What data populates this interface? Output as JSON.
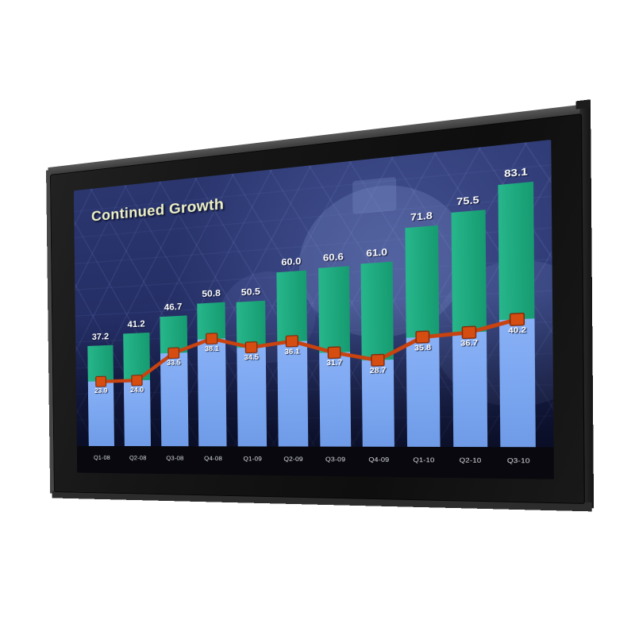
{
  "scene": {
    "background_color": "#ffffff",
    "monitor": {
      "bezel_color": "#141414",
      "top_edge_color": "#4d4d4d",
      "right_edge_color": "#1e1e1e",
      "screen_background_top": "#2b366f",
      "screen_background_bottom": "#0e1336"
    }
  },
  "chart_data": {
    "type": "bar",
    "subtype": "overlapped-bars-with-line-overlay",
    "title": "Continued Growth",
    "title_color": "#edf0c4",
    "categories": [
      "Q1-08",
      "Q2-08",
      "Q3-08",
      "Q4-08",
      "Q1-09",
      "Q2-09",
      "Q3-09",
      "Q4-09",
      "Q1-10",
      "Q2-10",
      "Q3-10"
    ],
    "series": [
      {
        "name": "total-bars",
        "type": "bar",
        "color": "#1fa87c",
        "values": [
          37.2,
          41.2,
          46.7,
          50.8,
          50.5,
          60.0,
          60.6,
          61.0,
          71.8,
          75.5,
          83.1
        ]
      },
      {
        "name": "component-bars",
        "type": "bar",
        "color": "#7da8f0",
        "values": [
          23.9,
          24.0,
          33.5,
          38.1,
          34.5,
          36.1,
          31.7,
          28.7,
          35.8,
          36.7,
          40.2
        ]
      },
      {
        "name": "trend-line",
        "type": "line",
        "color": "#c8430f",
        "marker": "square",
        "marker_color": "#d64d12",
        "marker_border_color": "#7e2a08",
        "values": [
          23.9,
          24.0,
          33.5,
          38.1,
          34.5,
          36.1,
          31.7,
          28.7,
          35.8,
          36.7,
          40.2
        ]
      }
    ],
    "value_label_color": "#ffffff",
    "axis_strip_color": "#08080e",
    "axis_label_color": "#e2e5ec",
    "ylim": [
      0,
      90
    ],
    "grid": false,
    "legend": null
  }
}
